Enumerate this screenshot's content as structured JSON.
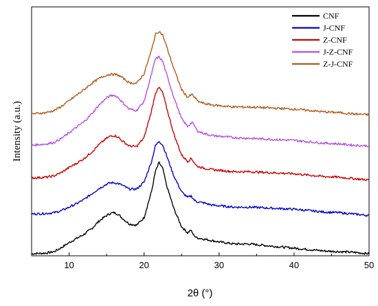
{
  "chart_data": {
    "type": "line",
    "title": "",
    "xlabel": "2θ (°)",
    "ylabel": "Intensity (a.u.)",
    "xlim": [
      5,
      50
    ],
    "x_ticks": [
      10,
      20,
      30,
      40,
      50
    ],
    "y_ticks_shown": false,
    "legend_position": "top-right",
    "series": [
      {
        "name": "CNF",
        "color": "#000000",
        "offset": 0,
        "x": [
          5,
          7,
          8,
          9,
          10,
          11,
          12,
          13,
          14,
          15,
          15.5,
          16,
          16.5,
          17,
          18,
          19,
          20,
          21,
          21.5,
          22,
          22.5,
          23,
          24,
          25,
          25.8,
          26.2,
          26.6,
          27,
          28,
          29,
          30,
          32,
          34,
          36,
          38,
          40,
          42,
          44,
          46,
          48,
          50
        ],
        "y": [
          0,
          1,
          3,
          9,
          16,
          22,
          28,
          36,
          47,
          55,
          58,
          59,
          57,
          52,
          43,
          41,
          52,
          90,
          118,
          131,
          122,
          98,
          64,
          39,
          30,
          34,
          27,
          23,
          21,
          19,
          17,
          14,
          14,
          12,
          10,
          8,
          6,
          4,
          3,
          2,
          0
        ]
      },
      {
        "name": "J-CNF",
        "color": "#0000cc",
        "offset": 55,
        "x": [
          5,
          7,
          8,
          9,
          10,
          11,
          12,
          13,
          14,
          15,
          15.5,
          16,
          16.5,
          17,
          18,
          19,
          20,
          21,
          21.5,
          22,
          22.5,
          23,
          24,
          25,
          25.8,
          26.3,
          26.7,
          27,
          28,
          29,
          30,
          32,
          34,
          36,
          38,
          40,
          42,
          44,
          46,
          48,
          50
        ],
        "y": [
          2,
          3,
          4,
          7,
          12,
          17,
          23,
          31,
          39,
          45,
          47,
          47,
          46,
          44,
          38,
          38,
          48,
          78,
          100,
          107,
          101,
          86,
          56,
          34,
          26,
          28,
          22,
          20,
          18,
          15,
          14,
          12,
          12,
          11,
          10,
          9,
          7,
          5,
          4,
          2,
          0
        ]
      },
      {
        "name": "Z-CNF",
        "color": "#cc0000",
        "offset": 105,
        "x": [
          5,
          7,
          8,
          9,
          10,
          11,
          12,
          13,
          14,
          15,
          15.5,
          16,
          16.5,
          17,
          18,
          19,
          20,
          21,
          21.5,
          22,
          22.5,
          23,
          24,
          25,
          25.8,
          26.3,
          26.7,
          27,
          28,
          29,
          30,
          32,
          34,
          36,
          38,
          40,
          42,
          44,
          46,
          48,
          50
        ],
        "y": [
          4,
          5,
          7,
          12,
          19,
          25,
          32,
          41,
          52,
          61,
          64,
          65,
          63,
          58,
          50,
          49,
          62,
          101,
          126,
          134,
          126,
          105,
          66,
          37,
          28,
          32,
          26,
          21,
          18,
          16,
          15,
          13,
          13,
          12,
          11,
          10,
          8,
          6,
          5,
          3,
          1
        ]
      },
      {
        "name": "J-Z-CNF",
        "color": "#b44ee0",
        "offset": 152,
        "x": [
          5,
          7,
          8,
          9,
          10,
          11,
          12,
          13,
          14,
          15,
          15.5,
          16,
          16.5,
          17,
          18,
          19,
          20,
          21,
          21.5,
          22,
          22.5,
          23,
          24,
          25,
          25.8,
          26.4,
          26.8,
          27.2,
          28,
          29,
          30,
          32,
          34,
          36,
          38,
          40,
          42,
          44,
          46,
          48,
          50
        ],
        "y": [
          4,
          6,
          8,
          14,
          22,
          30,
          38,
          49,
          62,
          72,
          75,
          76,
          73,
          67,
          56,
          54,
          67,
          107,
          128,
          131,
          124,
          106,
          72,
          42,
          31,
          37,
          30,
          24,
          21,
          18,
          17,
          15,
          14,
          13,
          12,
          11,
          9,
          7,
          6,
          4,
          3
        ]
      },
      {
        "name": "Z-J-CNF",
        "color": "#b05a1a",
        "offset": 198,
        "x": [
          5,
          7,
          8,
          9,
          10,
          11,
          12,
          13,
          14,
          15,
          15.5,
          16,
          16.5,
          17,
          18,
          19,
          20,
          21,
          21.5,
          22,
          22.5,
          23,
          24,
          25,
          25.8,
          26.4,
          26.8,
          27.2,
          28,
          29,
          30,
          32,
          34,
          36,
          38,
          40,
          42,
          44,
          46,
          48,
          50
        ],
        "y": [
          3,
          5,
          8,
          14,
          22,
          30,
          38,
          47,
          54,
          59,
          60,
          60,
          59,
          56,
          48,
          47,
          61,
          95,
          117,
          122,
          116,
          100,
          67,
          38,
          27,
          31,
          26,
          21,
          18,
          16,
          15,
          13,
          13,
          12,
          11,
          10,
          8,
          6,
          5,
          3,
          2
        ]
      }
    ]
  }
}
